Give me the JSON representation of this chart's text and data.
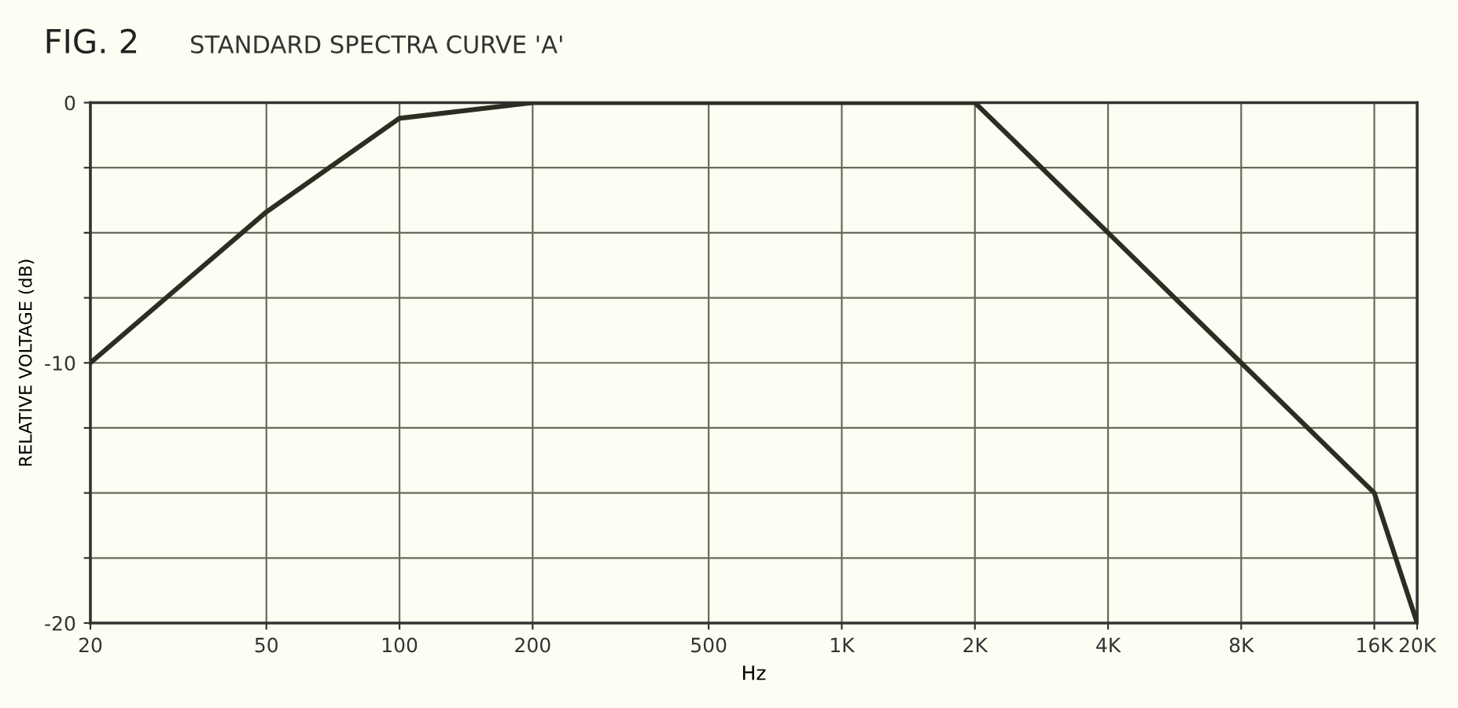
{
  "chart_data": {
    "type": "line",
    "title": "FIG. 2",
    "subtitle": "STANDARD SPECTRA CURVE 'A'",
    "xlabel": "Hz",
    "ylabel": "RELATIVE VOLTAGE (dB)",
    "log": "x",
    "x": [
      20,
      50,
      100,
      200,
      500,
      1000,
      2000,
      4000,
      8000,
      16000,
      20000
    ],
    "series": [
      {
        "color": "#2a2f22",
        "values": [
          -10,
          -4.2,
          -0.6,
          0,
          0,
          0,
          0,
          -5,
          -10,
          -15,
          -20
        ]
      }
    ],
    "xlim": [
      20,
      20000
    ],
    "xticks": [
      20,
      50,
      100,
      200,
      500,
      {
        "value": 1000,
        "label": "1K"
      },
      {
        "value": 2000,
        "label": "2K"
      },
      {
        "value": 4000,
        "label": "4K"
      },
      {
        "value": 8000,
        "label": "8K"
      },
      {
        "value": 16000,
        "label": "16K"
      },
      {
        "value": 20000,
        "label": "20K"
      }
    ],
    "ylim": [
      -20,
      0
    ],
    "yticks": [
      -20,
      {
        "value": -17.5,
        "label": null
      },
      {
        "value": -15,
        "label": null
      },
      {
        "value": -12.5,
        "label": null
      },
      -10,
      {
        "value": -7.5,
        "label": null
      },
      {
        "value": -5,
        "label": null
      },
      {
        "value": -2.5,
        "label": null
      },
      0
    ],
    "grid": true,
    "marker": "none",
    "line_style": "solid",
    "legend": false
  }
}
